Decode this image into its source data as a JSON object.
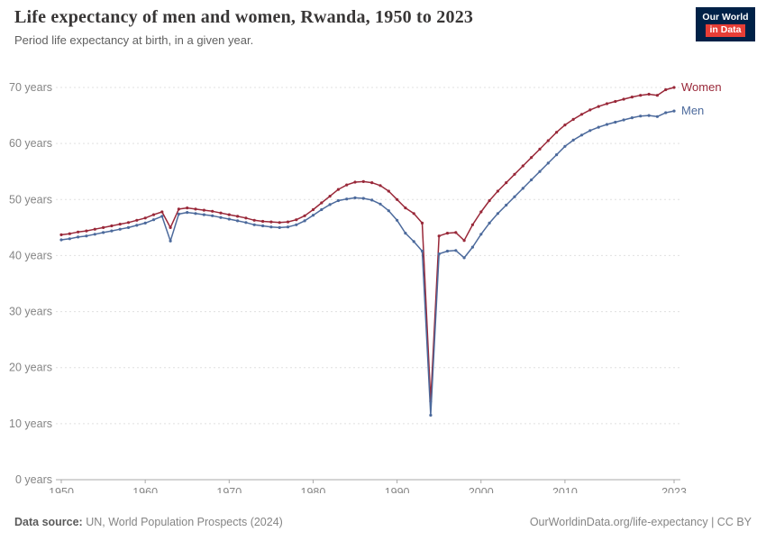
{
  "header": {
    "title": "Life expectancy of men and women, Rwanda, 1950 to 2023",
    "subtitle": "Period life expectancy at birth, in a given year."
  },
  "logo": {
    "line1": "Our World",
    "line2": "in Data",
    "bg_color": "#002147",
    "accent_color": "#e63e36"
  },
  "footer": {
    "source_label": "Data source:",
    "source_text": " UN, World Population Prospects (2024)",
    "link_text": "OurWorldinData.org/life-expectancy | CC BY"
  },
  "chart_data": {
    "type": "line",
    "title": "Life expectancy of men and women, Rwanda, 1950 to 2023",
    "subtitle": "Period life expectancy at birth, in a given year.",
    "xlabel": "",
    "ylabel": "",
    "ylim": [
      0,
      70
    ],
    "x_range": [
      1950,
      2023
    ],
    "x_interval": 1,
    "x_ticks": [
      1950,
      1960,
      1970,
      1980,
      1990,
      2000,
      2010,
      2023
    ],
    "y_ticks": [
      0,
      10,
      20,
      30,
      40,
      50,
      60,
      70
    ],
    "y_tick_labels": [
      "0 years",
      "10 years",
      "20 years",
      "30 years",
      "40 years",
      "50 years",
      "60 years",
      "70 years"
    ],
    "grid": "horizontal-dashed",
    "legend": "end-of-line-labels",
    "series": [
      {
        "name": "Women",
        "color": "#992839",
        "values": [
          43.7,
          43.9,
          44.2,
          44.4,
          44.7,
          45.0,
          45.3,
          45.6,
          45.9,
          46.3,
          46.7,
          47.3,
          47.8,
          45.0,
          48.3,
          48.5,
          48.3,
          48.1,
          47.9,
          47.6,
          47.3,
          47.0,
          46.7,
          46.3,
          46.1,
          46.0,
          45.9,
          46.0,
          46.4,
          47.1,
          48.2,
          49.4,
          50.6,
          51.8,
          52.6,
          53.1,
          53.2,
          53.0,
          52.5,
          51.5,
          50.0,
          48.5,
          47.5,
          45.8,
          14.0,
          43.5,
          44.0,
          44.1,
          42.7,
          45.5,
          47.8,
          49.8,
          51.5,
          53.0,
          54.5,
          56.0,
          57.5,
          59.0,
          60.5,
          62.0,
          63.3,
          64.3,
          65.2,
          66.0,
          66.6,
          67.1,
          67.5,
          67.9,
          68.3,
          68.6,
          68.8,
          68.6,
          69.6,
          70.0
        ]
      },
      {
        "name": "Men",
        "color": "#4c6a9c",
        "values": [
          42.8,
          43.0,
          43.3,
          43.5,
          43.8,
          44.1,
          44.4,
          44.7,
          45.0,
          45.4,
          45.8,
          46.4,
          47.0,
          42.6,
          47.4,
          47.7,
          47.5,
          47.3,
          47.1,
          46.8,
          46.5,
          46.2,
          45.9,
          45.5,
          45.3,
          45.1,
          45.0,
          45.1,
          45.5,
          46.2,
          47.2,
          48.2,
          49.1,
          49.8,
          50.1,
          50.3,
          50.2,
          49.9,
          49.2,
          48.0,
          46.3,
          44.0,
          42.5,
          40.8,
          11.5,
          40.3,
          40.8,
          40.9,
          39.6,
          41.5,
          43.8,
          45.8,
          47.5,
          49.0,
          50.5,
          52.0,
          53.5,
          55.0,
          56.5,
          58.0,
          59.5,
          60.6,
          61.5,
          62.3,
          62.9,
          63.4,
          63.8,
          64.2,
          64.6,
          64.9,
          65.0,
          64.8,
          65.5,
          65.8
        ]
      }
    ]
  }
}
